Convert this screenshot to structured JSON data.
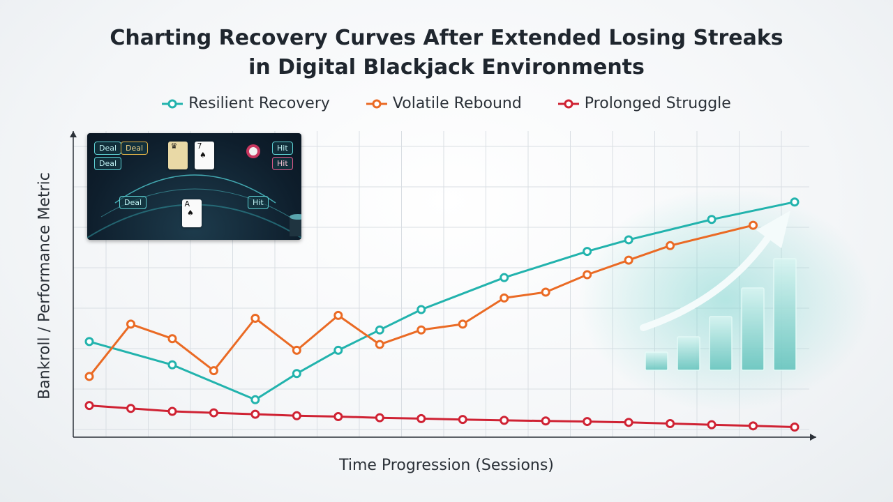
{
  "title_lines": [
    "Charting Recovery Curves After Extended Losing Streaks",
    "in Digital Blackjack Environments"
  ],
  "inset": {
    "buttons": [
      "Deal",
      "Deal",
      "Deal",
      "Deal",
      "Hit",
      "Hit",
      "Hit"
    ]
  },
  "chart_data": {
    "type": "line",
    "title": "Charting Recovery Curves After Extended Losing Streaks in Digital Blackjack Environments",
    "xlabel": "Time Progression (Sessions)",
    "ylabel": "Bankroll / Performance Metric",
    "x": [
      1,
      2,
      3,
      4,
      5,
      6,
      7,
      8,
      9,
      10,
      11,
      12,
      13,
      14,
      15,
      16,
      17,
      18
    ],
    "ylim": [
      0,
      10
    ],
    "grid": true,
    "tick_labels": false,
    "legend": "top-center",
    "series": [
      {
        "name": "Resilient Recovery",
        "color": "#22b3ad",
        "values": [
          3.0,
          null,
          2.2,
          null,
          1.0,
          1.9,
          2.7,
          3.4,
          4.1,
          null,
          5.2,
          null,
          6.1,
          6.5,
          null,
          7.2,
          null,
          7.8
        ]
      },
      {
        "name": "Volatile Rebound",
        "color": "#ea6a24",
        "values": [
          1.8,
          3.6,
          3.1,
          2.0,
          3.8,
          2.7,
          3.9,
          2.9,
          3.4,
          3.6,
          4.5,
          4.7,
          5.3,
          5.8,
          6.3,
          null,
          7.0,
          null
        ]
      },
      {
        "name": "Prolonged Struggle",
        "color": "#cf2233",
        "values": [
          0.8,
          0.7,
          0.6,
          0.55,
          0.5,
          0.45,
          0.42,
          0.38,
          0.35,
          0.32,
          0.29,
          0.27,
          0.25,
          0.22,
          0.18,
          0.14,
          0.1,
          0.06
        ]
      }
    ]
  }
}
